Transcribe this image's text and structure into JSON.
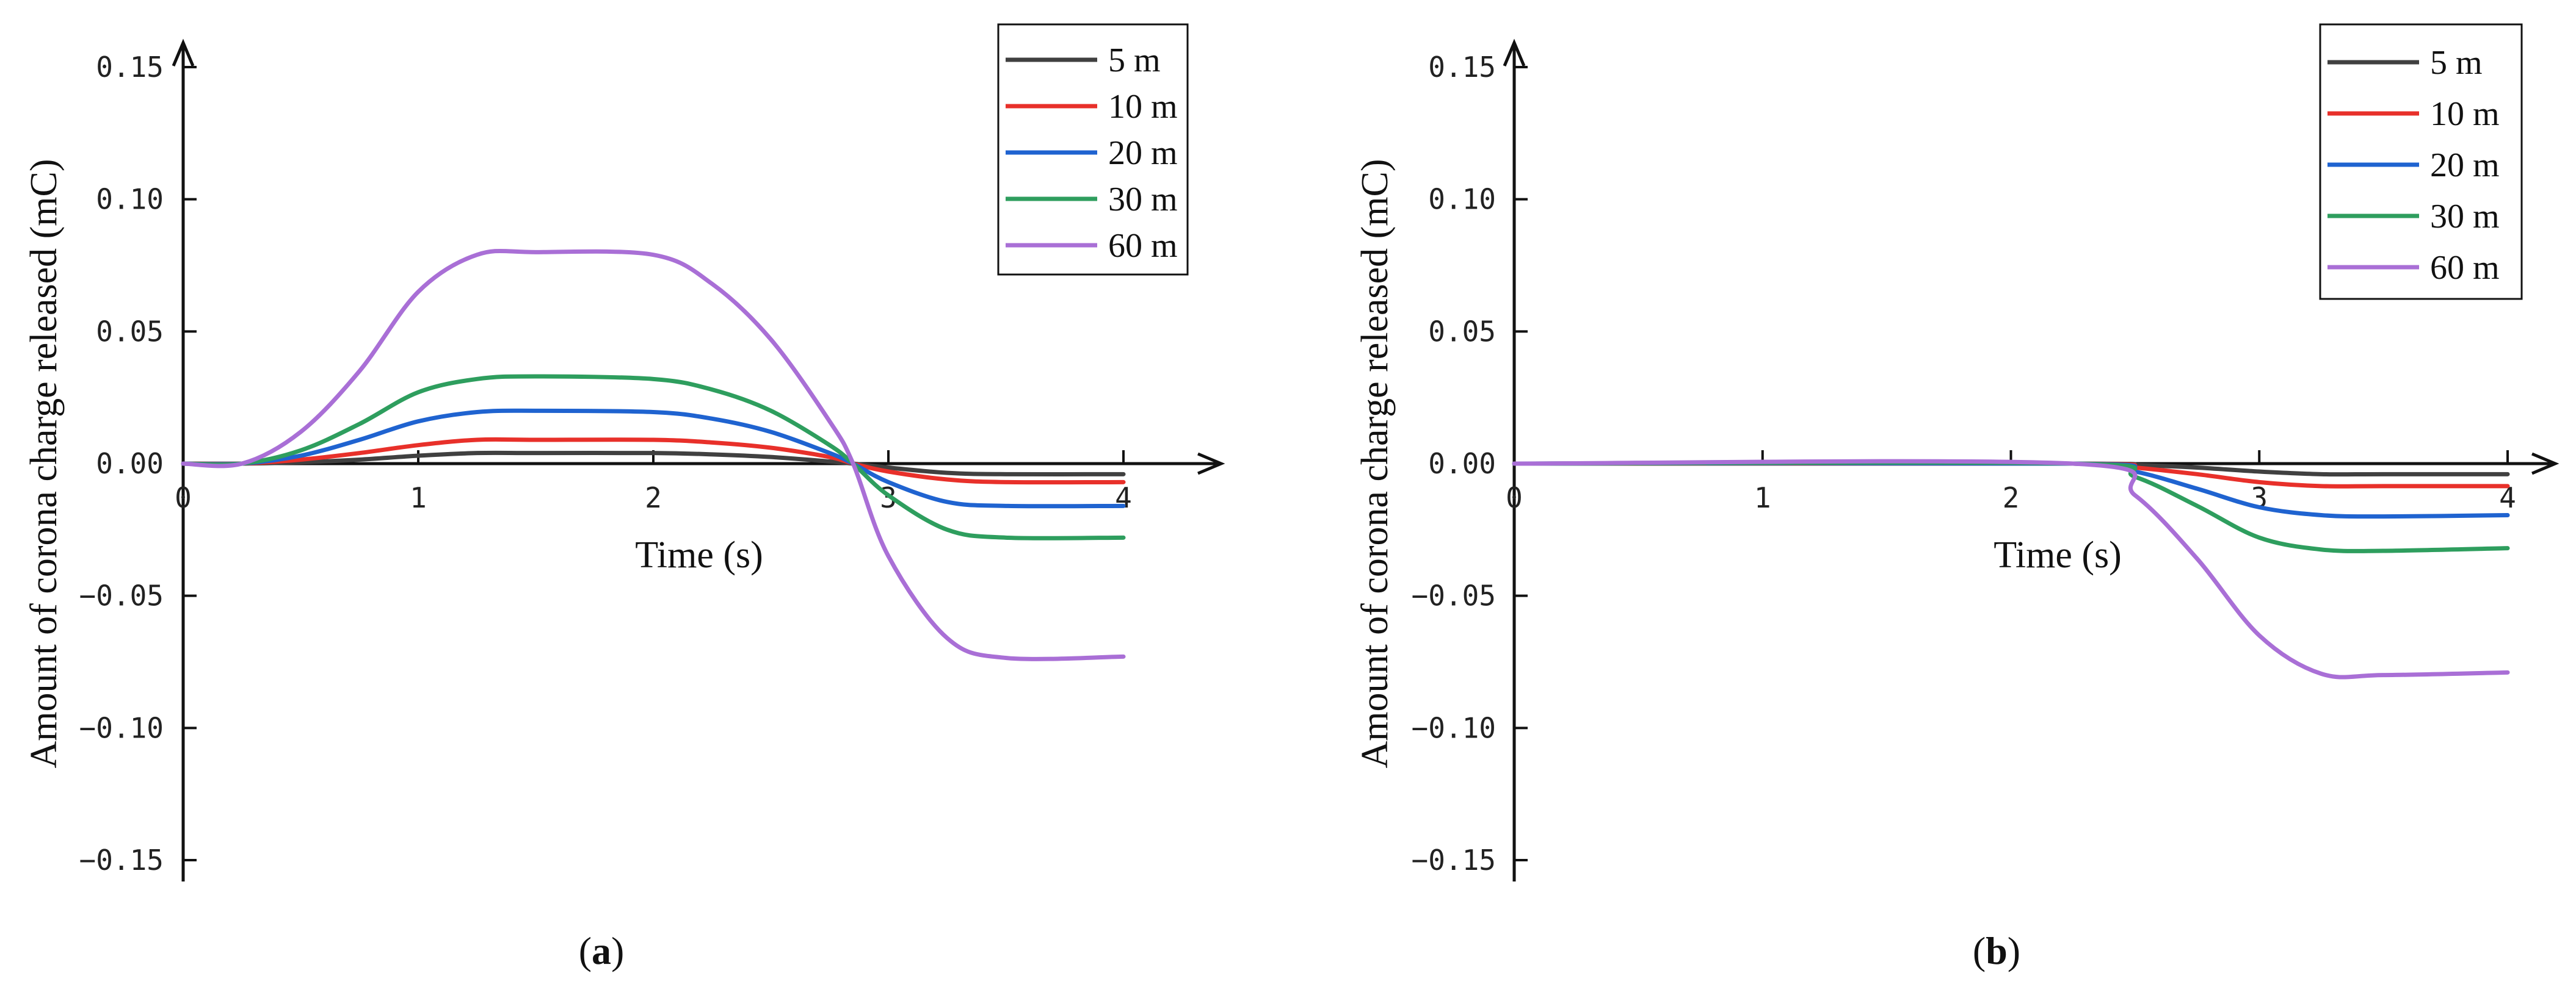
{
  "chart_data": [
    {
      "type": "line",
      "panel_label": "a",
      "xlabel": "Time (s)",
      "ylabel": "Amount of corona charge released (mC)",
      "xlim": [
        0,
        4
      ],
      "ylim": [
        -0.15,
        0.15
      ],
      "xticks": [
        "0",
        "1",
        "2",
        "3",
        "4"
      ],
      "yticks": [
        "0.15",
        "0.10",
        "0.05",
        "0.00",
        "−0.05",
        "−0.10",
        "−0.15"
      ],
      "legend_position": "top-right",
      "grid": false,
      "series": [
        {
          "name": "5 m",
          "color": "#404040",
          "points": [
            [
              0,
              0
            ],
            [
              0.25,
              0
            ],
            [
              0.5,
              0.0005
            ],
            [
              0.75,
              0.0015
            ],
            [
              1.0,
              0.003
            ],
            [
              1.25,
              0.004
            ],
            [
              1.5,
              0.004
            ],
            [
              2.0,
              0.004
            ],
            [
              2.25,
              0.0035
            ],
            [
              2.5,
              0.0025
            ],
            [
              2.75,
              0.0008
            ],
            [
              2.85,
              0
            ],
            [
              3.0,
              -0.0015
            ],
            [
              3.25,
              -0.0035
            ],
            [
              3.5,
              -0.004
            ],
            [
              4.0,
              -0.004
            ]
          ]
        },
        {
          "name": "10 m",
          "color": "#e8302a",
          "points": [
            [
              0,
              0
            ],
            [
              0.25,
              0
            ],
            [
              0.5,
              0.0015
            ],
            [
              0.75,
              0.004
            ],
            [
              1.0,
              0.007
            ],
            [
              1.25,
              0.009
            ],
            [
              1.5,
              0.009
            ],
            [
              2.0,
              0.009
            ],
            [
              2.25,
              0.008
            ],
            [
              2.5,
              0.006
            ],
            [
              2.75,
              0.0025
            ],
            [
              2.85,
              0
            ],
            [
              3.0,
              -0.003
            ],
            [
              3.25,
              -0.006
            ],
            [
              3.5,
              -0.007
            ],
            [
              4.0,
              -0.007
            ]
          ]
        },
        {
          "name": "20 m",
          "color": "#1f63d0",
          "points": [
            [
              0,
              0
            ],
            [
              0.25,
              0
            ],
            [
              0.5,
              0.003
            ],
            [
              0.75,
              0.009
            ],
            [
              1.0,
              0.016
            ],
            [
              1.25,
              0.0195
            ],
            [
              1.5,
              0.02
            ],
            [
              2.0,
              0.0195
            ],
            [
              2.25,
              0.017
            ],
            [
              2.5,
              0.012
            ],
            [
              2.75,
              0.004
            ],
            [
              2.85,
              0
            ],
            [
              3.0,
              -0.007
            ],
            [
              3.25,
              -0.0145
            ],
            [
              3.5,
              -0.016
            ],
            [
              4.0,
              -0.016
            ]
          ]
        },
        {
          "name": "30 m",
          "color": "#2e9e5e",
          "points": [
            [
              0,
              0
            ],
            [
              0.25,
              0
            ],
            [
              0.5,
              0.005
            ],
            [
              0.75,
              0.015
            ],
            [
              1.0,
              0.027
            ],
            [
              1.25,
              0.032
            ],
            [
              1.5,
              0.033
            ],
            [
              2.0,
              0.032
            ],
            [
              2.25,
              0.028
            ],
            [
              2.5,
              0.02
            ],
            [
              2.75,
              0.007
            ],
            [
              2.85,
              0
            ],
            [
              3.0,
              -0.012
            ],
            [
              3.25,
              -0.025
            ],
            [
              3.5,
              -0.028
            ],
            [
              4.0,
              -0.028
            ]
          ]
        },
        {
          "name": "60 m",
          "color": "#a96fd6",
          "points": [
            [
              0,
              0
            ],
            [
              0.25,
              0
            ],
            [
              0.5,
              0.012
            ],
            [
              0.75,
              0.035
            ],
            [
              1.0,
              0.065
            ],
            [
              1.25,
              0.079
            ],
            [
              1.5,
              0.08
            ],
            [
              2.0,
              0.079
            ],
            [
              2.25,
              0.068
            ],
            [
              2.5,
              0.047
            ],
            [
              2.75,
              0.016
            ],
            [
              2.85,
              0
            ],
            [
              3.0,
              -0.035
            ],
            [
              3.25,
              -0.066
            ],
            [
              3.5,
              -0.0735
            ],
            [
              4.0,
              -0.073
            ]
          ]
        }
      ]
    },
    {
      "type": "line",
      "panel_label": "b",
      "xlabel": "Time (s)",
      "ylabel": "Amount of corona charge released (mC)",
      "xlim": [
        0,
        4
      ],
      "ylim": [
        -0.15,
        0.15
      ],
      "xticks": [
        "0",
        "1",
        "2",
        "3",
        "4"
      ],
      "yticks": [
        "0.15",
        "0.10",
        "0.05",
        "0.00",
        "−0.05",
        "−0.10",
        "−0.15"
      ],
      "legend_position": "top-right",
      "grid": false,
      "series": [
        {
          "name": "5 m",
          "color": "#404040",
          "points": [
            [
              0,
              0
            ],
            [
              2.25,
              0
            ],
            [
              2.5,
              -0.0005
            ],
            [
              2.75,
              -0.0015
            ],
            [
              3.0,
              -0.003
            ],
            [
              3.25,
              -0.004
            ],
            [
              3.5,
              -0.004
            ],
            [
              4.0,
              -0.004
            ]
          ]
        },
        {
          "name": "10 m",
          "color": "#e8302a",
          "points": [
            [
              0,
              0
            ],
            [
              2.25,
              0
            ],
            [
              2.5,
              -0.0015
            ],
            [
              2.75,
              -0.004
            ],
            [
              3.0,
              -0.007
            ],
            [
              3.25,
              -0.0085
            ],
            [
              3.5,
              -0.0085
            ],
            [
              4.0,
              -0.0085
            ]
          ]
        },
        {
          "name": "20 m",
          "color": "#1f63d0",
          "points": [
            [
              0,
              0
            ],
            [
              2.25,
              0
            ],
            [
              2.5,
              -0.003
            ],
            [
              2.75,
              -0.0095
            ],
            [
              3.0,
              -0.0165
            ],
            [
              3.25,
              -0.0195
            ],
            [
              3.5,
              -0.02
            ],
            [
              4.0,
              -0.0195
            ]
          ]
        },
        {
          "name": "30 m",
          "color": "#2e9e5e",
          "points": [
            [
              0,
              0
            ],
            [
              2.25,
              0
            ],
            [
              2.5,
              -0.005
            ],
            [
              2.75,
              -0.016
            ],
            [
              3.0,
              -0.028
            ],
            [
              3.25,
              -0.0325
            ],
            [
              3.5,
              -0.033
            ],
            [
              4.0,
              -0.032
            ]
          ]
        },
        {
          "name": "60 m",
          "color": "#a96fd6",
          "points": [
            [
              0,
              0
            ],
            [
              2.25,
              0
            ],
            [
              2.5,
              -0.012
            ],
            [
              2.75,
              -0.036
            ],
            [
              3.0,
              -0.065
            ],
            [
              3.25,
              -0.0795
            ],
            [
              3.5,
              -0.08
            ],
            [
              4.0,
              -0.079
            ]
          ]
        }
      ]
    }
  ]
}
